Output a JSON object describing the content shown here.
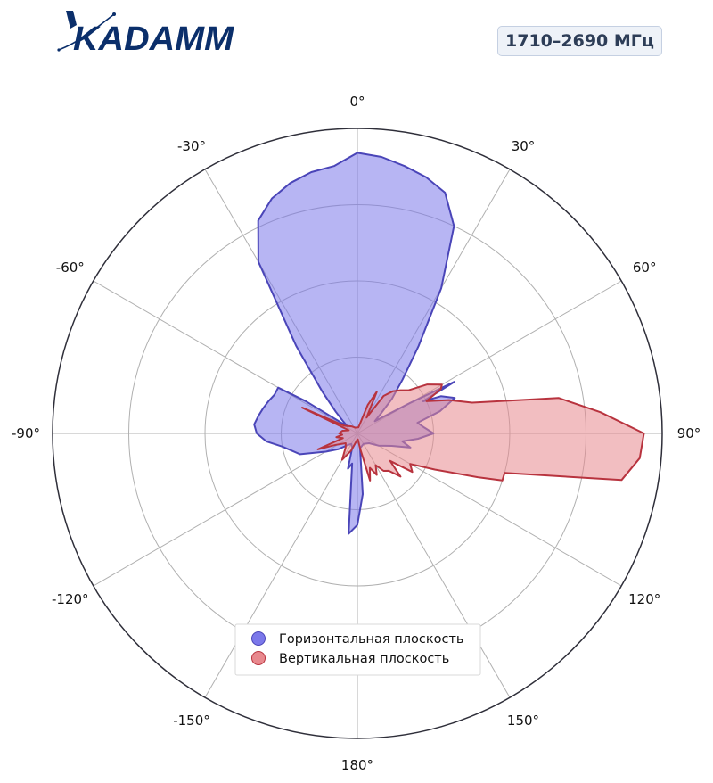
{
  "logo": {
    "text": "KADAMM",
    "color": "#0b2f6b"
  },
  "band_label": "1710–2690 МГц",
  "chart_data": {
    "type": "polar-area",
    "theta_direction": "clockwise",
    "theta_zero": "top",
    "theta_ticks": [
      "0°",
      "30°",
      "60°",
      "90°",
      "120°",
      "150°",
      "180°",
      "-150°",
      "-120°",
      "-90°",
      "-60°",
      "-30°"
    ],
    "theta_tick_values": [
      0,
      30,
      60,
      90,
      120,
      150,
      180,
      -150,
      -120,
      -90,
      -60,
      -30
    ],
    "r_range": [
      0,
      1
    ],
    "r_grid": [
      0.25,
      0.5,
      0.75,
      1.0
    ],
    "grid": true,
    "legend_position": "lower-center",
    "series": [
      {
        "name": "Горизонтальная плоскость",
        "color": "#7b78ea",
        "edge_color": "#4a45b8",
        "points": [
          [
            -180,
            0.3
          ],
          [
            -175,
            0.33
          ],
          [
            -170,
            0.1
          ],
          [
            -165,
            0.12
          ],
          [
            -160,
            0.05
          ],
          [
            -150,
            0.04
          ],
          [
            -140,
            0.05
          ],
          [
            -130,
            0.08
          ],
          [
            -120,
            0.12
          ],
          [
            -110,
            0.2
          ],
          [
            -100,
            0.25
          ],
          [
            -95,
            0.3
          ],
          [
            -90,
            0.33
          ],
          [
            -85,
            0.34
          ],
          [
            -80,
            0.33
          ],
          [
            -75,
            0.32
          ],
          [
            -70,
            0.31
          ],
          [
            -65,
            0.3
          ],
          [
            -60,
            0.3
          ],
          [
            -58,
            0.2
          ],
          [
            -55,
            0.04
          ],
          [
            -50,
            0.06
          ],
          [
            -45,
            0.1
          ],
          [
            -40,
            0.18
          ],
          [
            -35,
            0.35
          ],
          [
            -30,
            0.65
          ],
          [
            -25,
            0.77
          ],
          [
            -20,
            0.82
          ],
          [
            -15,
            0.85
          ],
          [
            -10,
            0.87
          ],
          [
            -5,
            0.88
          ],
          [
            0,
            0.92
          ],
          [
            5,
            0.91
          ],
          [
            10,
            0.89
          ],
          [
            15,
            0.87
          ],
          [
            20,
            0.84
          ],
          [
            25,
            0.75
          ],
          [
            30,
            0.55
          ],
          [
            35,
            0.35
          ],
          [
            40,
            0.23
          ],
          [
            45,
            0.16
          ],
          [
            50,
            0.1
          ],
          [
            55,
            0.07
          ],
          [
            60,
            0.2
          ],
          [
            62,
            0.36
          ],
          [
            64,
            0.24
          ],
          [
            66,
            0.3
          ],
          [
            70,
            0.34
          ],
          [
            75,
            0.28
          ],
          [
            80,
            0.2
          ],
          [
            85,
            0.22
          ],
          [
            90,
            0.25
          ],
          [
            95,
            0.2
          ],
          [
            100,
            0.15
          ],
          [
            105,
            0.18
          ],
          [
            110,
            0.12
          ],
          [
            120,
            0.08
          ],
          [
            130,
            0.05
          ],
          [
            150,
            0.04
          ],
          [
            170,
            0.05
          ],
          [
            175,
            0.2
          ],
          [
            180,
            0.3
          ]
        ]
      },
      {
        "name": "Вертикальная плоскость",
        "color": "#e8898e",
        "edge_color": "#b8333e",
        "points": [
          [
            -180,
            0.02
          ],
          [
            -160,
            0.06
          ],
          [
            -150,
            0.1
          ],
          [
            -140,
            0.06
          ],
          [
            -130,
            0.05
          ],
          [
            -118,
            0.08
          ],
          [
            -112,
            0.14
          ],
          [
            -108,
            0.05
          ],
          [
            -100,
            0.07
          ],
          [
            -95,
            0.05
          ],
          [
            -90,
            0.06
          ],
          [
            -80,
            0.05
          ],
          [
            -70,
            0.03
          ],
          [
            -65,
            0.2
          ],
          [
            -60,
            0.05
          ],
          [
            -40,
            0.03
          ],
          [
            -20,
            0.02
          ],
          [
            0,
            0.02
          ],
          [
            10,
            0.02
          ],
          [
            20,
            0.1
          ],
          [
            25,
            0.15
          ],
          [
            30,
            0.06
          ],
          [
            35,
            0.15
          ],
          [
            40,
            0.18
          ],
          [
            45,
            0.2
          ],
          [
            50,
            0.22
          ],
          [
            55,
            0.28
          ],
          [
            60,
            0.32
          ],
          [
            62,
            0.31
          ],
          [
            65,
            0.25
          ],
          [
            70,
            0.32
          ],
          [
            75,
            0.39
          ],
          [
            80,
            0.67
          ],
          [
            85,
            0.8
          ],
          [
            90,
            0.94
          ],
          [
            95,
            0.93
          ],
          [
            100,
            0.88
          ],
          [
            105,
            0.5
          ],
          [
            108,
            0.5
          ],
          [
            110,
            0.42
          ],
          [
            115,
            0.28
          ],
          [
            120,
            0.2
          ],
          [
            125,
            0.22
          ],
          [
            130,
            0.14
          ],
          [
            135,
            0.2
          ],
          [
            140,
            0.16
          ],
          [
            145,
            0.15
          ],
          [
            150,
            0.12
          ],
          [
            155,
            0.15
          ],
          [
            160,
            0.12
          ],
          [
            165,
            0.16
          ],
          [
            170,
            0.05
          ],
          [
            175,
            0.02
          ],
          [
            180,
            0.02
          ]
        ]
      }
    ]
  }
}
